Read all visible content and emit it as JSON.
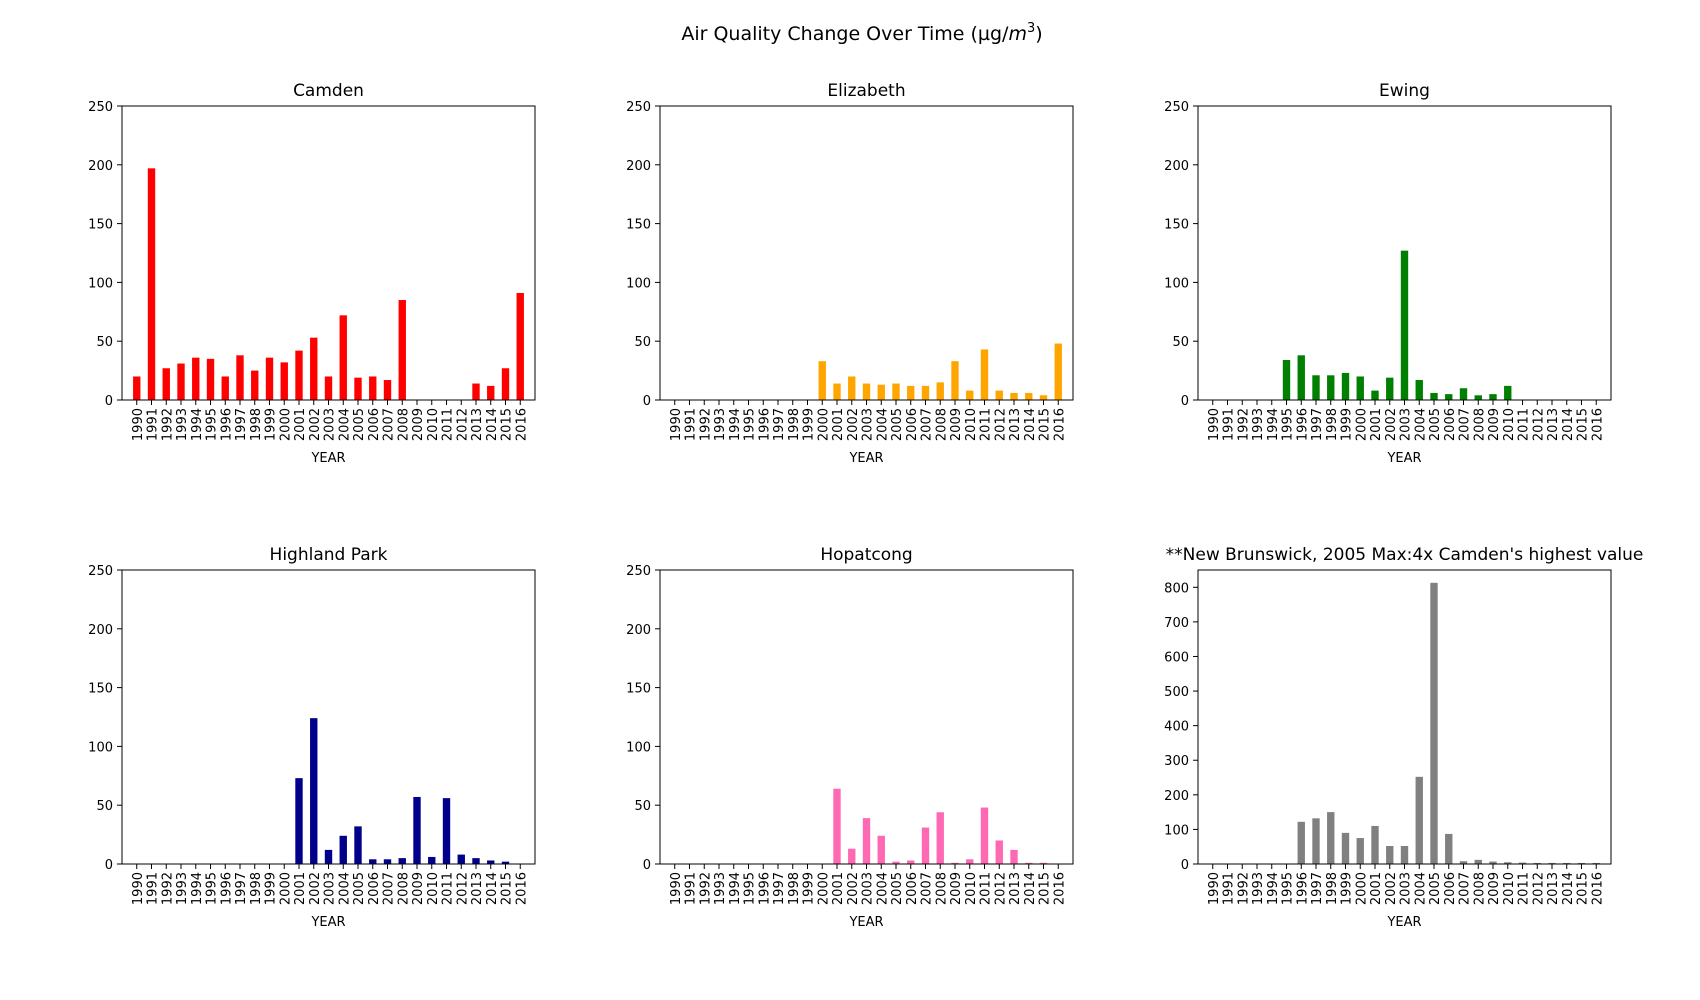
{
  "figure": {
    "title_main": "Air Quality Change Over Time (µg/",
    "title_unit_base": "m",
    "title_unit_exp": "3",
    "title_close": ")"
  },
  "chart_data": [
    {
      "type": "bar",
      "title": "Camden",
      "xlabel": "YEAR",
      "ylabel": "",
      "color": "#ff0000",
      "ylim": [
        0,
        250
      ],
      "yticks": [
        0,
        50,
        100,
        150,
        200,
        250
      ],
      "categories": [
        "1990",
        "1991",
        "1992",
        "1993",
        "1994",
        "1995",
        "1996",
        "1997",
        "1998",
        "1999",
        "2000",
        "2001",
        "2002",
        "2003",
        "2004",
        "2005",
        "2006",
        "2007",
        "2008",
        "2009",
        "2010",
        "2011",
        "2012",
        "2013",
        "2014",
        "2015",
        "2016"
      ],
      "values": [
        20,
        197,
        27,
        31,
        36,
        35,
        20,
        38,
        25,
        36,
        32,
        42,
        53,
        20,
        72,
        19,
        20,
        17,
        85,
        0,
        0,
        0,
        0,
        14,
        12,
        27,
        91
      ]
    },
    {
      "type": "bar",
      "title": "Elizabeth",
      "xlabel": "YEAR",
      "ylabel": "",
      "color": "#ffa500",
      "ylim": [
        0,
        250
      ],
      "yticks": [
        0,
        50,
        100,
        150,
        200,
        250
      ],
      "categories": [
        "1990",
        "1991",
        "1992",
        "1993",
        "1994",
        "1995",
        "1996",
        "1997",
        "1998",
        "1999",
        "2000",
        "2001",
        "2002",
        "2003",
        "2004",
        "2005",
        "2006",
        "2007",
        "2008",
        "2009",
        "2010",
        "2011",
        "2012",
        "2013",
        "2014",
        "2015",
        "2016"
      ],
      "values": [
        0,
        0,
        0,
        0,
        0,
        0,
        0,
        0,
        0,
        0,
        33,
        14,
        20,
        14,
        13,
        14,
        12,
        12,
        15,
        33,
        8,
        43,
        8,
        6,
        6,
        4,
        48
      ]
    },
    {
      "type": "bar",
      "title": "Ewing",
      "xlabel": "YEAR",
      "ylabel": "",
      "color": "#008000",
      "ylim": [
        0,
        250
      ],
      "yticks": [
        0,
        50,
        100,
        150,
        200,
        250
      ],
      "categories": [
        "1990",
        "1991",
        "1992",
        "1993",
        "1994",
        "1995",
        "1996",
        "1997",
        "1998",
        "1999",
        "2000",
        "2001",
        "2002",
        "2003",
        "2004",
        "2005",
        "2006",
        "2007",
        "2008",
        "2009",
        "2010",
        "2011",
        "2012",
        "2013",
        "2014",
        "2015",
        "2016"
      ],
      "values": [
        0,
        0,
        0,
        0,
        0,
        34,
        38,
        21,
        21,
        23,
        20,
        8,
        19,
        127,
        17,
        6,
        5,
        10,
        4,
        5,
        12,
        0,
        0,
        0,
        0,
        0,
        0
      ]
    },
    {
      "type": "bar",
      "title": "Highland Park",
      "xlabel": "YEAR",
      "ylabel": "",
      "color": "#00008b",
      "ylim": [
        0,
        250
      ],
      "yticks": [
        0,
        50,
        100,
        150,
        200,
        250
      ],
      "categories": [
        "1990",
        "1991",
        "1992",
        "1993",
        "1994",
        "1995",
        "1996",
        "1997",
        "1998",
        "1999",
        "2000",
        "2001",
        "2002",
        "2003",
        "2004",
        "2005",
        "2006",
        "2007",
        "2008",
        "2009",
        "2010",
        "2011",
        "2012",
        "2013",
        "2014",
        "2015",
        "2016"
      ],
      "values": [
        0,
        0,
        0,
        0,
        0,
        0,
        0,
        0,
        0,
        0,
        0,
        73,
        124,
        12,
        24,
        32,
        4,
        4,
        5,
        57,
        6,
        56,
        8,
        5,
        3,
        2,
        0
      ]
    },
    {
      "type": "bar",
      "title": "Hopatcong",
      "xlabel": "YEAR",
      "ylabel": "",
      "color": "#ff69b4",
      "ylim": [
        0,
        250
      ],
      "yticks": [
        0,
        50,
        100,
        150,
        200,
        250
      ],
      "categories": [
        "1990",
        "1991",
        "1992",
        "1993",
        "1994",
        "1995",
        "1996",
        "1997",
        "1998",
        "1999",
        "2000",
        "2001",
        "2002",
        "2003",
        "2004",
        "2005",
        "2006",
        "2007",
        "2008",
        "2009",
        "2010",
        "2011",
        "2012",
        "2013",
        "2014",
        "2015",
        "2016"
      ],
      "values": [
        0,
        0,
        0,
        0,
        0,
        0,
        0,
        0,
        0,
        0,
        0,
        64,
        13,
        39,
        24,
        2,
        3,
        31,
        44,
        1,
        4,
        48,
        20,
        12,
        1,
        1,
        0
      ]
    },
    {
      "type": "bar",
      "title": "**New Brunswick, 2005 Max:4x Camden's highest value",
      "xlabel": "YEAR",
      "ylabel": "",
      "color": "#808080",
      "ylim": [
        0,
        850
      ],
      "yticks": [
        0,
        100,
        200,
        300,
        400,
        500,
        600,
        700,
        800
      ],
      "categories": [
        "1990",
        "1991",
        "1992",
        "1993",
        "1994",
        "1995",
        "1996",
        "1997",
        "1998",
        "1999",
        "2000",
        "2001",
        "2002",
        "2003",
        "2004",
        "2005",
        "2006",
        "2007",
        "2008",
        "2009",
        "2010",
        "2011",
        "2012",
        "2013",
        "2014",
        "2015",
        "2016"
      ],
      "values": [
        0,
        0,
        0,
        0,
        0,
        0,
        122,
        132,
        150,
        90,
        75,
        110,
        52,
        52,
        252,
        813,
        87,
        8,
        12,
        7,
        5,
        4,
        3,
        3,
        3,
        3,
        3
      ]
    }
  ]
}
